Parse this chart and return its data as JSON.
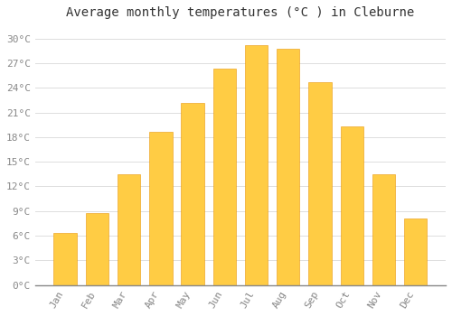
{
  "title": "Average monthly temperatures (°C ) in Cleburne",
  "months": [
    "Jan",
    "Feb",
    "Mar",
    "Apr",
    "May",
    "Jun",
    "Jul",
    "Aug",
    "Sep",
    "Oct",
    "Nov",
    "Dec"
  ],
  "values": [
    6.3,
    8.8,
    13.5,
    18.6,
    22.2,
    26.3,
    29.2,
    28.8,
    24.7,
    19.3,
    13.5,
    8.1
  ],
  "bar_color_top": "#FFCC44",
  "bar_color_bot": "#FFAA00",
  "bar_edge_color": "#E8960A",
  "background_color": "#FFFFFF",
  "plot_bg_color": "#FFFFFF",
  "grid_color": "#DDDDDD",
  "ytick_labels": [
    "0°C",
    "3°C",
    "6°C",
    "9°C",
    "12°C",
    "15°C",
    "18°C",
    "21°C",
    "24°C",
    "27°C",
    "30°C"
  ],
  "ytick_values": [
    0,
    3,
    6,
    9,
    12,
    15,
    18,
    21,
    24,
    27,
    30
  ],
  "ylim": [
    0,
    31.5
  ],
  "title_fontsize": 10,
  "tick_fontsize": 8,
  "tick_color": "#888888",
  "title_color": "#333333",
  "bar_width": 0.72
}
